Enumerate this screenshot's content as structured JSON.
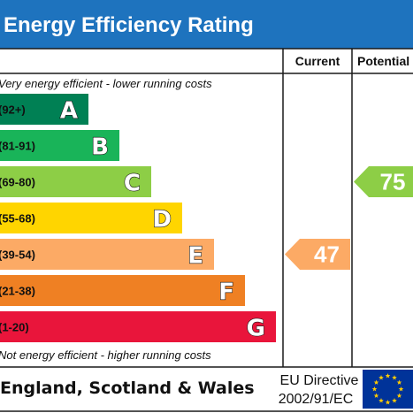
{
  "chart_data": {
    "type": "bar",
    "title": "Energy Efficiency Rating",
    "columns": {
      "current": "Current",
      "potential": "Potential"
    },
    "top_note": "Very energy efficient - lower running costs",
    "bottom_note": "Not energy efficient - higher running costs",
    "bands": [
      {
        "letter": "A",
        "range": "(92+)",
        "color": "#008054"
      },
      {
        "letter": "B",
        "range": "(81-91)",
        "color": "#19b459"
      },
      {
        "letter": "C",
        "range": "(69-80)",
        "color": "#8dce46"
      },
      {
        "letter": "D",
        "range": "(55-68)",
        "color": "#ffd500"
      },
      {
        "letter": "E",
        "range": "(39-54)",
        "color": "#fcaa65"
      },
      {
        "letter": "F",
        "range": "(21-38)",
        "color": "#ef8023"
      },
      {
        "letter": "G",
        "range": "(1-20)",
        "color": "#e9153b"
      }
    ],
    "current": {
      "value": 47,
      "band": "E",
      "color": "#fcaa65"
    },
    "potential": {
      "value": 75,
      "band": "C",
      "color": "#8dce46"
    },
    "footer": {
      "region": "England, Scotland & Wales",
      "directive_line1": "EU Directive",
      "directive_line2": "2002/91/EC"
    },
    "colors": {
      "header_bg": "#1e73be",
      "eu_flag": "#003399",
      "eu_stars": "#ffcc00"
    }
  }
}
